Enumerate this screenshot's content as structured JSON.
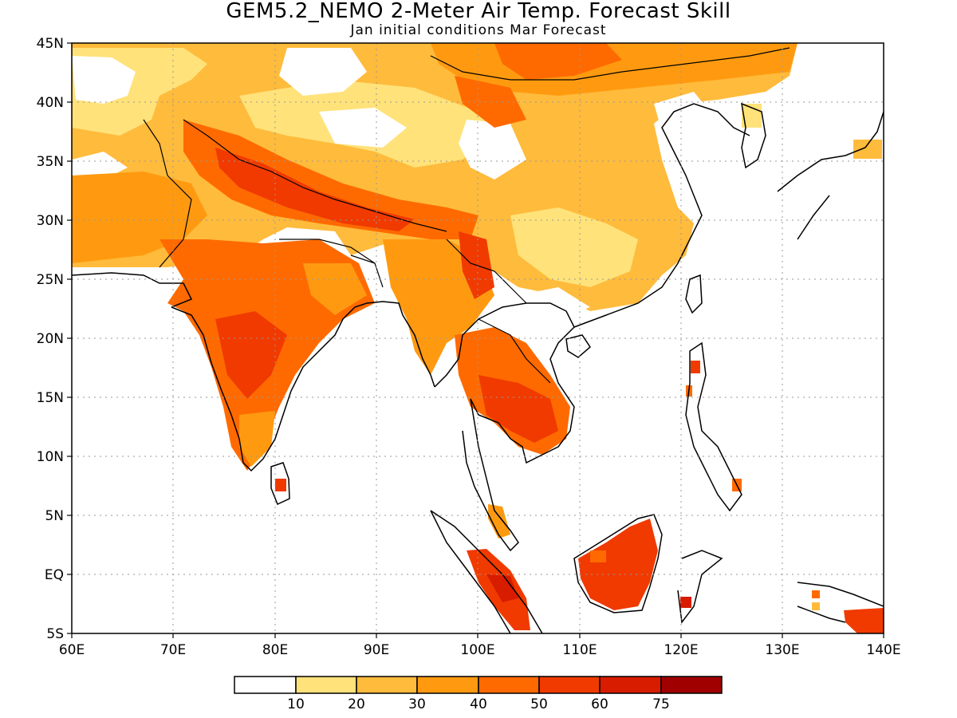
{
  "title": "GEM5.2_NEMO 2-Meter Air Temp. Forecast Skill",
  "subtitle": "Jan initial conditions  Mar Forecast",
  "map": {
    "lon_range": [
      60,
      140
    ],
    "lat_range": [
      -5,
      45
    ],
    "x_ticks": [
      "60E",
      "70E",
      "80E",
      "90E",
      "100E",
      "110E",
      "120E",
      "130E",
      "140E"
    ],
    "y_ticks": [
      "45N",
      "40N",
      "35N",
      "30N",
      "25N",
      "20N",
      "15N",
      "10N",
      "5N",
      "EQ",
      "5S"
    ],
    "gridlines": "dotted"
  },
  "colorbar": {
    "colors": [
      "#ffffff",
      "#ffe27a",
      "#ffbb3c",
      "#ff9a10",
      "#ff6a00",
      "#f03a00",
      "#d81c00",
      "#a00000"
    ],
    "labels": [
      "10",
      "20",
      "30",
      "40",
      "50",
      "60",
      "75"
    ]
  },
  "legend_scale_name": "forecast-skill-colorbar"
}
